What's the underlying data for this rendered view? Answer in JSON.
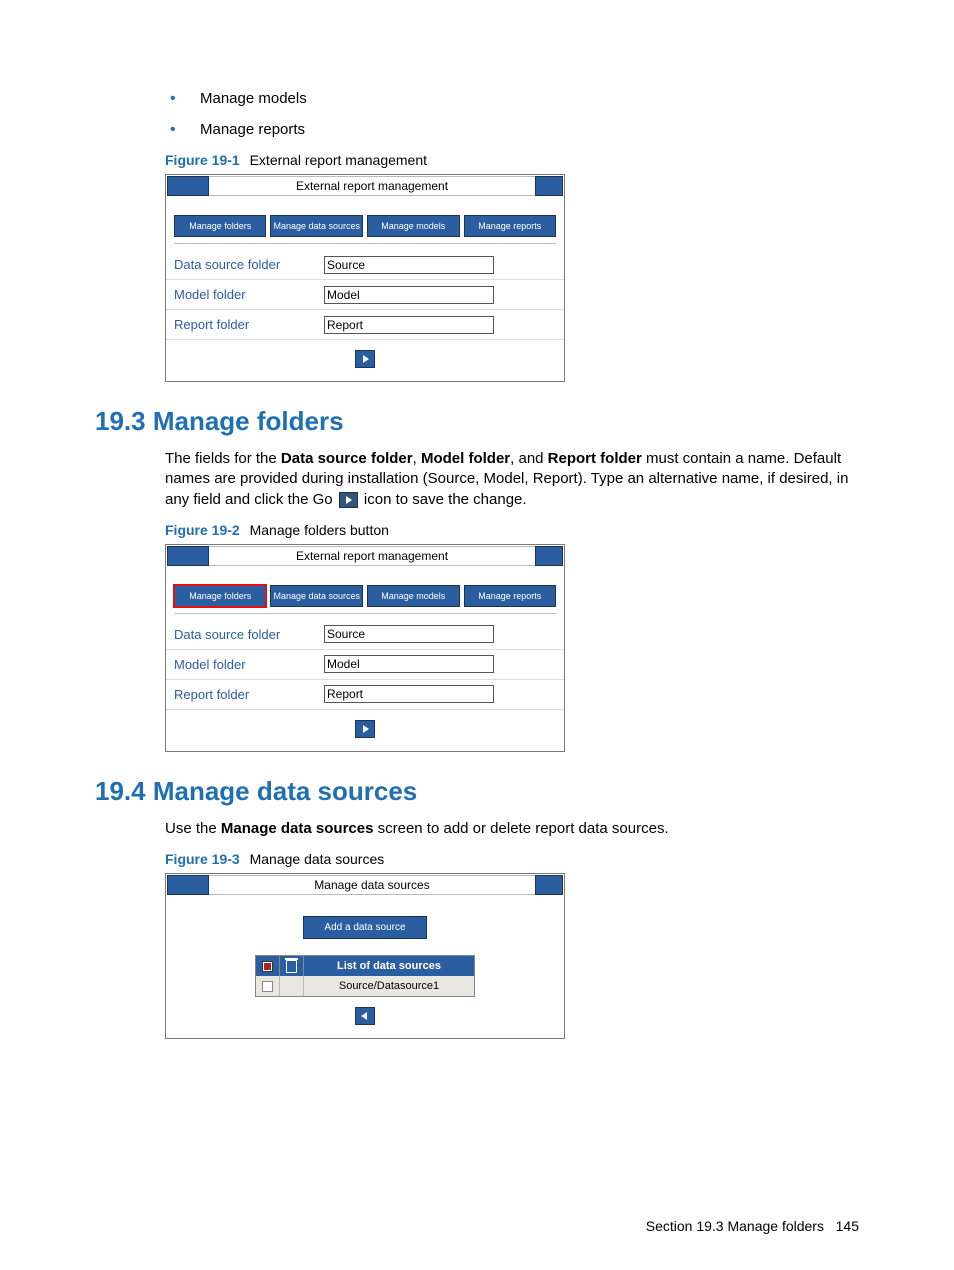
{
  "bullets": [
    "Manage models",
    "Manage reports"
  ],
  "fig1": {
    "label": "Figure 19-1",
    "caption": "External report management",
    "title": "External report management",
    "tabs": [
      "Manage folders",
      "Manage data sources",
      "Manage models",
      "Manage reports"
    ],
    "rows": [
      {
        "label": "Data source folder",
        "value": "Source"
      },
      {
        "label": "Model folder",
        "value": "Model"
      },
      {
        "label": "Report folder",
        "value": "Report"
      }
    ]
  },
  "sec193": {
    "title": "19.3 Manage folders",
    "para_pre": "The fields for the ",
    "b1": "Data source folder",
    "sep1": ", ",
    "b2": "Model folder",
    "sep2": ", and ",
    "b3": "Report folder",
    "para_mid": " must contain a name. Default names are provided during installation (Source, Model, Report). Type an alternative name, if desired, in any field and click the Go ",
    "para_post": " icon to save the change."
  },
  "fig2": {
    "label": "Figure 19-2",
    "caption": "Manage folders button",
    "title": "External report management",
    "tabs": [
      "Manage folders",
      "Manage data sources",
      "Manage models",
      "Manage reports"
    ],
    "rows": [
      {
        "label": "Data source folder",
        "value": "Source"
      },
      {
        "label": "Model folder",
        "value": "Model"
      },
      {
        "label": "Report folder",
        "value": "Report"
      }
    ]
  },
  "sec194": {
    "title": "19.4 Manage data sources",
    "para_pre": "Use the ",
    "b1": "Manage data sources",
    "para_post": " screen to add or delete report data sources."
  },
  "fig3": {
    "label": "Figure 19-3",
    "caption": "Manage data sources",
    "title": "Manage data sources",
    "addbtn": "Add a data source",
    "listheader": "List of data sources",
    "row1": "Source/Datasource1"
  },
  "footer": {
    "text": "Section 19.3  Manage folders",
    "page": "145"
  }
}
